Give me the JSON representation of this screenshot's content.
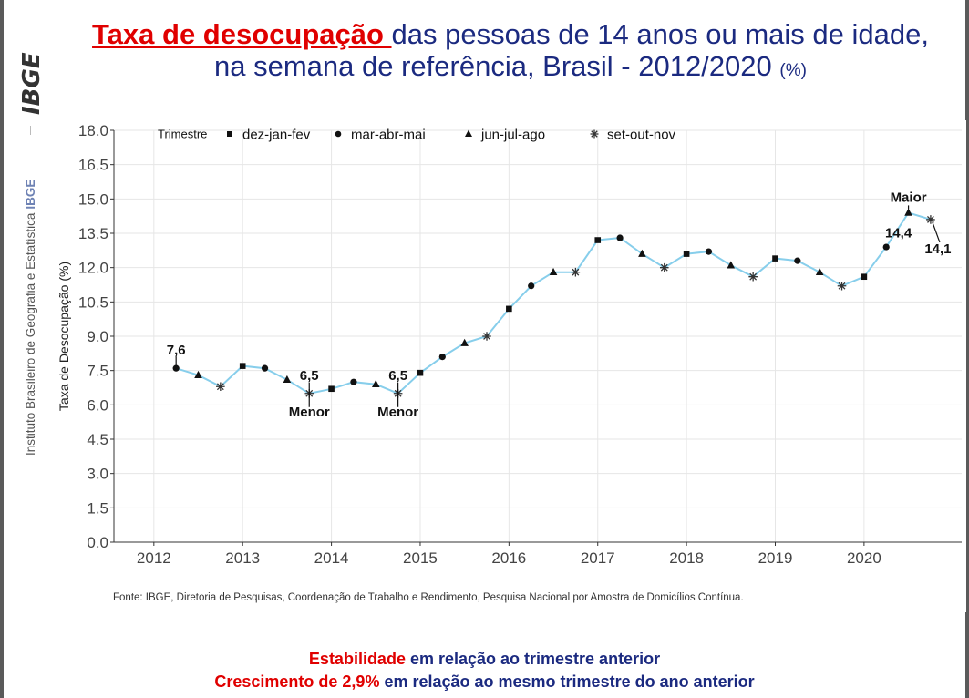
{
  "sidebar": {
    "logo_text": "IBGE",
    "institution": "Instituto Brasileiro de Geografia e Estatística",
    "acronym": "IBGE"
  },
  "title": {
    "highlight": "Taxa de desocupação ",
    "line1_rest": "das pessoas de 14 anos ou mais de idade,",
    "line2": "na semana de referência, Brasil - 2012/2020",
    "unit": "(%)"
  },
  "source": "Fonte: IBGE, Diretoria de Pesquisas, Coordenação de Trabalho e Rendimento, Pesquisa Nacional por Amostra de Domicílios Contínua.",
  "summary": {
    "line1_highlight": "Estabilidade",
    "line1_rest": " em relação ao trimestre anterior",
    "line2_highlight": "Crescimento de 2,9%",
    "line2_rest": " em relação ao mesmo trimestre do ano anterior"
  },
  "chart_data": {
    "type": "line",
    "title": "",
    "xlabel": "",
    "ylabel": "Taxa de Desocupação (%)",
    "ylim": [
      0,
      18
    ],
    "y_ticks": [
      "0.0",
      "1.5",
      "3.0",
      "4.5",
      "6.0",
      "7.5",
      "9.0",
      "10.5",
      "12.0",
      "13.5",
      "15.0",
      "16.5",
      "18.0"
    ],
    "x_ticks": [
      "2012",
      "2013",
      "2014",
      "2015",
      "2016",
      "2017",
      "2018",
      "2019",
      "2020"
    ],
    "grid": true,
    "line_color": "#87ceeb",
    "legend": {
      "title": "Trimestre",
      "placement": "top-left",
      "entries": [
        {
          "label": "dez-jan-fev",
          "marker": "square"
        },
        {
          "label": "mar-abr-mai",
          "marker": "circle"
        },
        {
          "label": "jun-jul-ago",
          "marker": "triangle"
        },
        {
          "label": "set-out-nov",
          "marker": "asterisk"
        }
      ]
    },
    "points": [
      {
        "x": 2012.25,
        "y": 7.6,
        "marker": "circle"
      },
      {
        "x": 2012.5,
        "y": 7.3,
        "marker": "triangle"
      },
      {
        "x": 2012.75,
        "y": 6.8,
        "marker": "asterisk"
      },
      {
        "x": 2013.0,
        "y": 7.7,
        "marker": "square"
      },
      {
        "x": 2013.25,
        "y": 7.6,
        "marker": "circle"
      },
      {
        "x": 2013.5,
        "y": 7.1,
        "marker": "triangle"
      },
      {
        "x": 2013.75,
        "y": 6.5,
        "marker": "asterisk"
      },
      {
        "x": 2014.0,
        "y": 6.7,
        "marker": "square"
      },
      {
        "x": 2014.25,
        "y": 7.0,
        "marker": "circle"
      },
      {
        "x": 2014.5,
        "y": 6.9,
        "marker": "triangle"
      },
      {
        "x": 2014.75,
        "y": 6.5,
        "marker": "asterisk"
      },
      {
        "x": 2015.0,
        "y": 7.4,
        "marker": "square"
      },
      {
        "x": 2015.25,
        "y": 8.1,
        "marker": "circle"
      },
      {
        "x": 2015.5,
        "y": 8.7,
        "marker": "triangle"
      },
      {
        "x": 2015.75,
        "y": 9.0,
        "marker": "asterisk"
      },
      {
        "x": 2016.0,
        "y": 10.2,
        "marker": "square"
      },
      {
        "x": 2016.25,
        "y": 11.2,
        "marker": "circle"
      },
      {
        "x": 2016.5,
        "y": 11.8,
        "marker": "triangle"
      },
      {
        "x": 2016.75,
        "y": 11.8,
        "marker": "asterisk"
      },
      {
        "x": 2017.0,
        "y": 13.2,
        "marker": "square"
      },
      {
        "x": 2017.25,
        "y": 13.3,
        "marker": "circle"
      },
      {
        "x": 2017.5,
        "y": 12.6,
        "marker": "triangle"
      },
      {
        "x": 2017.75,
        "y": 12.0,
        "marker": "asterisk"
      },
      {
        "x": 2018.0,
        "y": 12.6,
        "marker": "square"
      },
      {
        "x": 2018.25,
        "y": 12.7,
        "marker": "circle"
      },
      {
        "x": 2018.5,
        "y": 12.1,
        "marker": "triangle"
      },
      {
        "x": 2018.75,
        "y": 11.6,
        "marker": "asterisk"
      },
      {
        "x": 2019.0,
        "y": 12.4,
        "marker": "square"
      },
      {
        "x": 2019.25,
        "y": 12.3,
        "marker": "circle"
      },
      {
        "x": 2019.5,
        "y": 11.8,
        "marker": "triangle"
      },
      {
        "x": 2019.75,
        "y": 11.2,
        "marker": "asterisk"
      },
      {
        "x": 2020.0,
        "y": 11.6,
        "marker": "square"
      },
      {
        "x": 2020.25,
        "y": 12.9,
        "marker": "circle"
      },
      {
        "x": 2020.5,
        "y": 14.4,
        "marker": "triangle"
      },
      {
        "x": 2020.75,
        "y": 14.1,
        "marker": "asterisk"
      }
    ],
    "annotations": [
      {
        "x": 2012.25,
        "y": 7.6,
        "value": "7,6",
        "label": ""
      },
      {
        "x": 2013.75,
        "y": 6.5,
        "value": "6,5",
        "label": "Menor"
      },
      {
        "x": 2014.75,
        "y": 6.5,
        "value": "6,5",
        "label": "Menor"
      },
      {
        "x": 2020.5,
        "y": 14.4,
        "value": "14,4",
        "label": "Maior"
      },
      {
        "x": 2020.75,
        "y": 14.1,
        "value": "14,1",
        "label": ""
      }
    ]
  }
}
